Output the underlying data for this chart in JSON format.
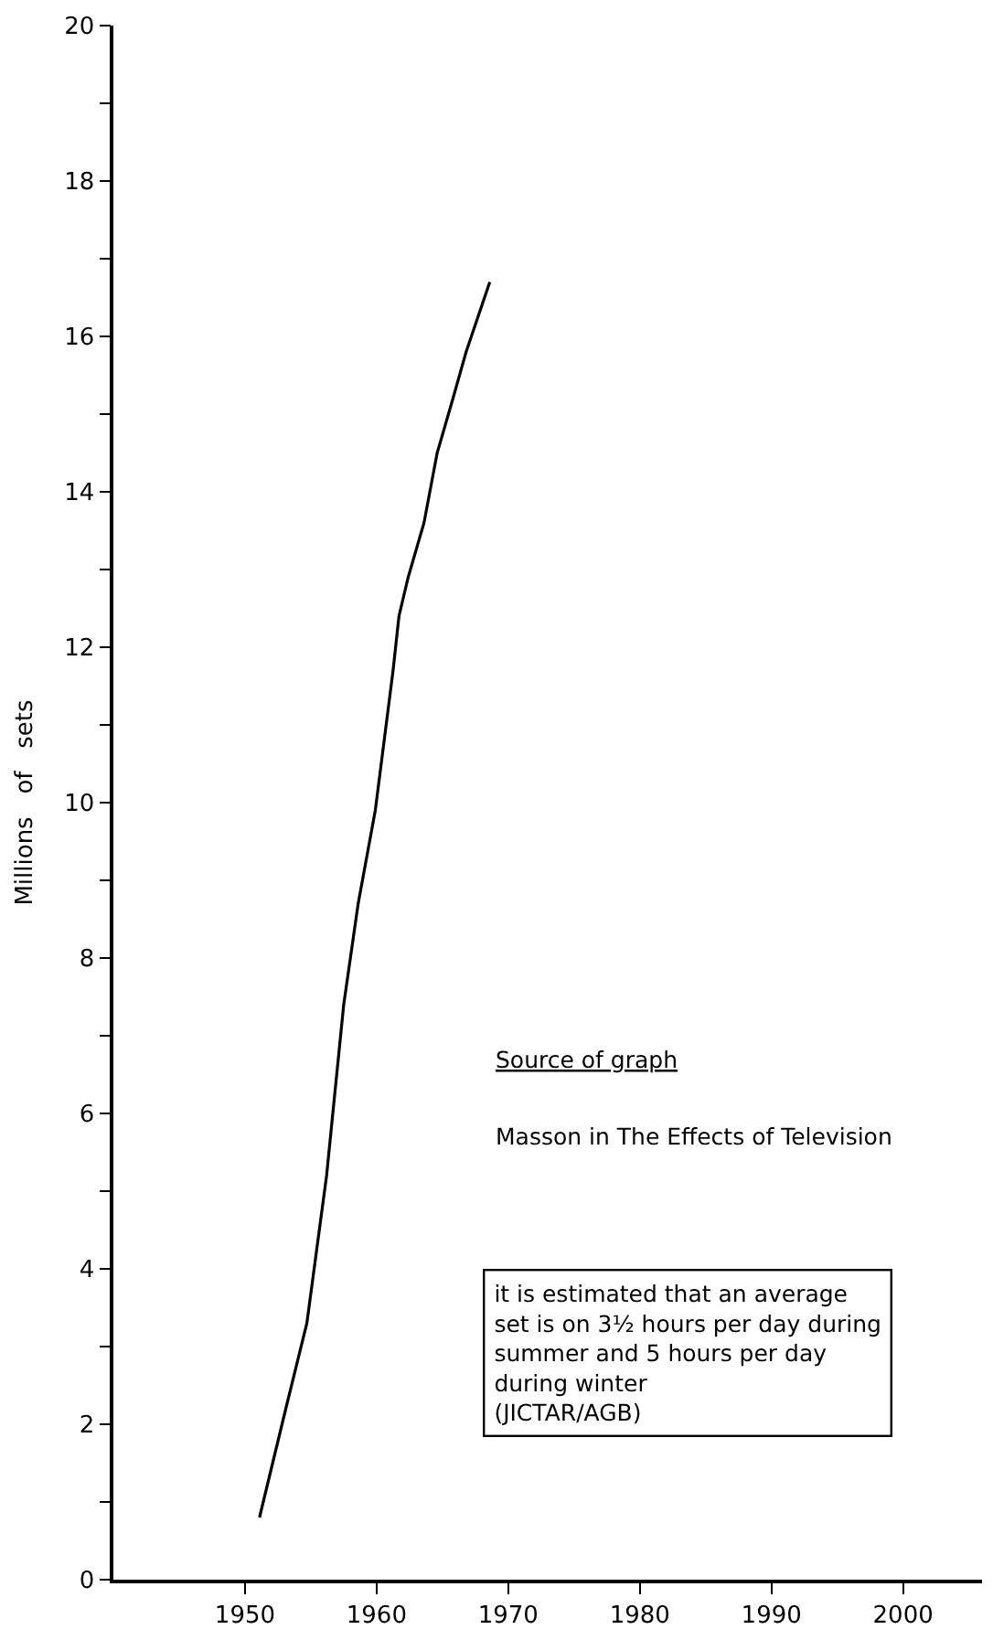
{
  "chart_data": {
    "type": "line",
    "ylabel": "Millions   of   sets",
    "x": [
      1951.1,
      1953.1,
      1954.7,
      1956.2,
      1957.5,
      1958.6,
      1959.9,
      1961.25,
      1961.7,
      1962.4,
      1963.6,
      1964.6,
      1965.8,
      1966.8,
      1968.6
    ],
    "series": [
      {
        "color": "#000000",
        "values": [
          0.8,
          2.2,
          3.3,
          5.2,
          7.4,
          8.7,
          9.9,
          11.7,
          12.4,
          12.9,
          13.6,
          14.5,
          15.2,
          15.8,
          16.7
        ]
      }
    ],
    "xlim": [
      1940,
      2006
    ],
    "xticks": [
      1950,
      1960,
      1970,
      1980,
      1990,
      2000
    ],
    "ylim": [
      0,
      20
    ],
    "yticks": [
      0,
      {
        "value": 1,
        "label": null
      },
      2,
      {
        "value": 3,
        "label": null
      },
      4,
      {
        "value": 5,
        "label": null
      },
      6,
      {
        "value": 7,
        "label": null
      },
      8,
      {
        "value": 9,
        "label": null
      },
      10,
      {
        "value": 11,
        "label": null
      },
      12,
      {
        "value": 13,
        "label": null
      },
      14,
      {
        "value": 15,
        "label": null
      },
      16,
      {
        "value": 17,
        "label": null
      },
      18,
      {
        "value": 19,
        "label": null
      },
      20
    ],
    "marker": "none",
    "line_style": "solid",
    "annotations": [
      "Source of graph",
      "Masson in The Effects of Television",
      "it is estimated that an average\nset is on 3½ hours per day during\nsummer and 5 hours per day\nduring winter\n(JICTAR/AGB)"
    ]
  }
}
